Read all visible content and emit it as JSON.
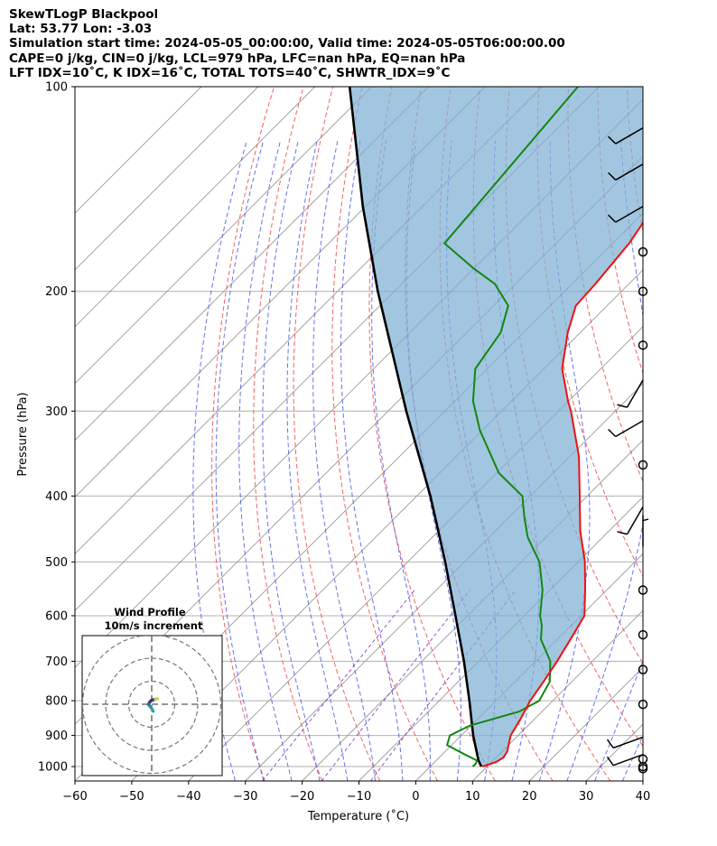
{
  "header": {
    "line1": "SkewTLogP Blackpool",
    "line2": "Lat: 53.77   Lon: -3.03",
    "line3": "Simulation start time: 2024-05-05_00:00:00, Valid time: 2024-05-05T06:00:00.00",
    "line4": "CAPE=0 j/kg, CIN=0 j/kg, LCL=979 hPa, LFC=nan hPa, EQ=nan hPa",
    "line5": "LFT IDX=10˚C, K IDX=16˚C, TOTAL TOTS=40˚C, SHWTR_IDX=9˚C"
  },
  "chart_data": {
    "type": "skew-t log-p",
    "xlabel": "Temperature (˚C)",
    "ylabel": "Pressure (hPa)",
    "xlim": [
      -60,
      40
    ],
    "ylim": [
      1050,
      100
    ],
    "y_scale": "log",
    "x_ticks": [
      "−60",
      "−50",
      "−40",
      "−30",
      "−20",
      "−10",
      "0",
      "10",
      "20",
      "30",
      "40"
    ],
    "y_ticks": [
      "100",
      "200",
      "300",
      "400",
      "500",
      "600",
      "700",
      "800",
      "900",
      "1000"
    ],
    "grid": true,
    "colors": {
      "temperature": "#ee1111",
      "dewpoint": "#118811",
      "parcel": "#000000",
      "cape_fill": "#7fb0d4",
      "dry_adiabats": "#f04848",
      "moist_adiabats": "#4a58ee",
      "mixing_ratio": "#7a2ec8",
      "isotherms": "#999999"
    },
    "temperature": {
      "pressure": [
        1000,
        985,
        970,
        950,
        925,
        900,
        850,
        800,
        750,
        700,
        650,
        600,
        550,
        500,
        450,
        400,
        350,
        300,
        290,
        260,
        230,
        210,
        195,
        180,
        170,
        150,
        130,
        115,
        100
      ],
      "temp": [
        9.2,
        10.8,
        11.3,
        10.9,
        9.8,
        8.7,
        7.5,
        6.0,
        5.0,
        3.8,
        2.3,
        0.6,
        -3.8,
        -8.8,
        -15.1,
        -21.3,
        -28.4,
        -37.8,
        -40.1,
        -46.8,
        -52.2,
        -55.5,
        -55.9,
        -56.6,
        -57.1,
        -59.2,
        -60.1,
        -61.7,
        -62.1
      ]
    },
    "dewpoint": {
      "pressure": [
        1000,
        990,
        980,
        960,
        930,
        900,
        870,
        830,
        800,
        750,
        700,
        650,
        620,
        600,
        550,
        500,
        460,
        430,
        400,
        370,
        320,
        290,
        260,
        230,
        210,
        195,
        185,
        170,
        100
      ],
      "dewp": [
        7.5,
        7.5,
        7.2,
        4.0,
        -0.8,
        -2.0,
        -0.2,
        6.0,
        7.6,
        6.1,
        2.6,
        -2.9,
        -5.2,
        -7.2,
        -11.3,
        -16.8,
        -23.2,
        -27.3,
        -31.4,
        -39.6,
        -50.5,
        -56.8,
        -62.1,
        -64.0,
        -67.4,
        -73.6,
        -80.1,
        -89.6,
        -93.7
      ]
    },
    "parcel_profile": {
      "pressure": [
        1000,
        979,
        900,
        800,
        700,
        600,
        500,
        400,
        300,
        200,
        150,
        100
      ],
      "temp": [
        9.0,
        7.4,
        2.1,
        -4.7,
        -12.6,
        -22.1,
        -33.4,
        -47.6,
        -66.8,
        -92.9,
        -110.5,
        -133.9
      ]
    },
    "cape_cin_shading": "between temperature and parcel profile",
    "wind_barbs": [
      {
        "pressure": 1007,
        "barb": "calm"
      },
      {
        "pressure": 1000,
        "barb": "calm"
      },
      {
        "pressure": 975,
        "barb": "calm"
      },
      {
        "pressure": 960,
        "speed_kt": 10,
        "dir_deg": 250
      },
      {
        "pressure": 905,
        "speed_kt": 10,
        "dir_deg": 250
      },
      {
        "pressure": 810,
        "barb": "calm"
      },
      {
        "pressure": 720,
        "barb": "calm"
      },
      {
        "pressure": 640,
        "barb": "calm"
      },
      {
        "pressure": 550,
        "barb": "calm"
      },
      {
        "pressure": 475,
        "speed_kt": 5,
        "dir_deg": 0
      },
      {
        "pressure": 415,
        "speed_kt": 10,
        "dir_deg": 210
      },
      {
        "pressure": 360,
        "barb": "calm"
      },
      {
        "pressure": 310,
        "speed_kt": 10,
        "dir_deg": 240
      },
      {
        "pressure": 270,
        "speed_kt": 10,
        "dir_deg": 210
      },
      {
        "pressure": 240,
        "barb": "calm"
      },
      {
        "pressure": 200,
        "barb": "calm"
      },
      {
        "pressure": 175,
        "barb": "calm"
      },
      {
        "pressure": 150,
        "speed_kt": 10,
        "dir_deg": 240
      },
      {
        "pressure": 130,
        "speed_kt": 10,
        "dir_deg": 240
      },
      {
        "pressure": 115,
        "speed_kt": 10,
        "dir_deg": 240
      }
    ],
    "inset": {
      "title_line1": "Wind Profile",
      "title_line2": "10m/s increment",
      "rings_ms": [
        10,
        20,
        30
      ],
      "hodograph_u": [
        0.6,
        0.2,
        -0.6,
        -1.4,
        -0.8,
        -0.2,
        0.8,
        1.6,
        2.4
      ],
      "hodograph_v": [
        -3.0,
        -2.2,
        -1.0,
        0.0,
        1.0,
        1.6,
        2.0,
        2.2,
        2.4
      ]
    }
  }
}
